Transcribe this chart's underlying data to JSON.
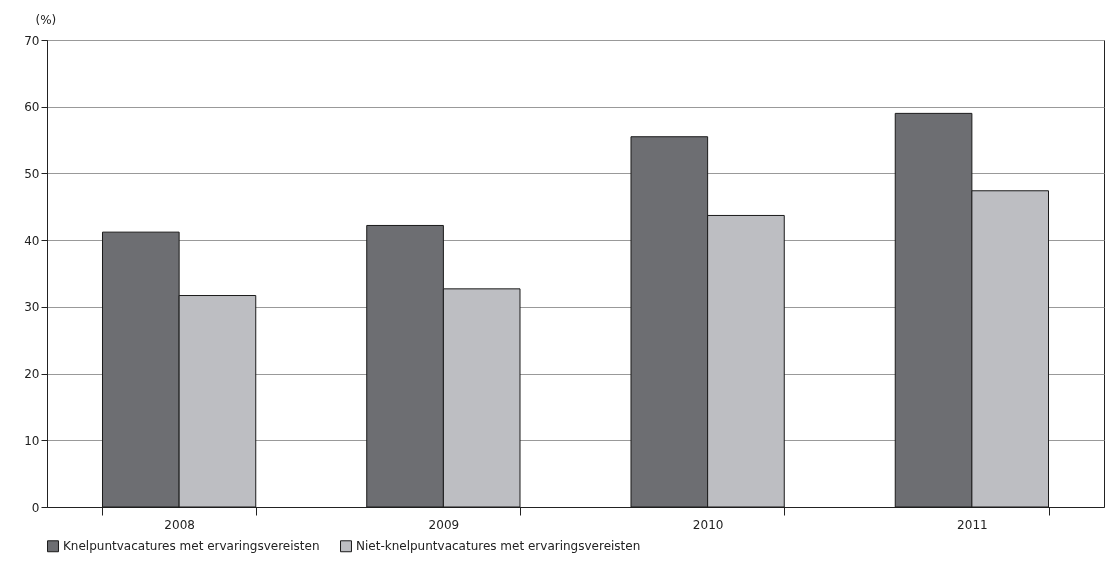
{
  "chart_data": {
    "type": "bar",
    "ylabel": "(%)",
    "categories": [
      "2008",
      "2009",
      "2010",
      "2011"
    ],
    "series": [
      {
        "name": "Knelpuntvacatures met ervaringsvereisten",
        "color": "#6d6e72",
        "values": [
          41.2,
          42.2,
          55.5,
          59.0
        ]
      },
      {
        "name": "Niet-knelpuntvacatures met ervaringsvereisten",
        "color": "#bdbec2",
        "values": [
          31.7,
          32.7,
          43.7,
          47.4
        ]
      }
    ],
    "ylim": [
      0,
      70
    ],
    "yticks": [
      0,
      10,
      20,
      30,
      40,
      50,
      60,
      70
    ],
    "grid": "y",
    "legend": "bottom"
  }
}
